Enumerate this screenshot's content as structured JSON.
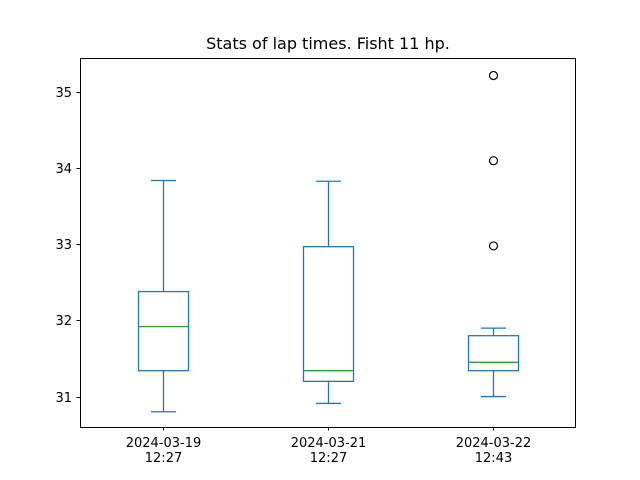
{
  "chart_data": {
    "type": "box",
    "title": "Stats of lap times. Fisht 11 hp.",
    "xlabel": "",
    "ylabel": "",
    "ylim": [
      30.6,
      35.45
    ],
    "yticks": [
      31,
      32,
      33,
      34,
      35
    ],
    "grid": false,
    "categories": [
      [
        "2024-03-19",
        "12:27"
      ],
      [
        "2024-03-21",
        "12:27"
      ],
      [
        "2024-03-22",
        "12:43"
      ]
    ],
    "boxes": [
      {
        "whisker_low": 30.8,
        "q1": 31.34,
        "median": 31.92,
        "q3": 32.38,
        "whisker_high": 33.84,
        "outliers": []
      },
      {
        "whisker_low": 30.91,
        "q1": 31.2,
        "median": 31.34,
        "q3": 32.97,
        "whisker_high": 33.83,
        "outliers": []
      },
      {
        "whisker_low": 31.0,
        "q1": 31.34,
        "median": 31.45,
        "q3": 31.8,
        "whisker_high": 31.9,
        "outliers": [
          32.98,
          34.1,
          35.22
        ]
      }
    ],
    "colors": {
      "box": "#1f77b4",
      "median": "#2ca02c",
      "outlier": "#000000",
      "axes": "#000000"
    }
  }
}
